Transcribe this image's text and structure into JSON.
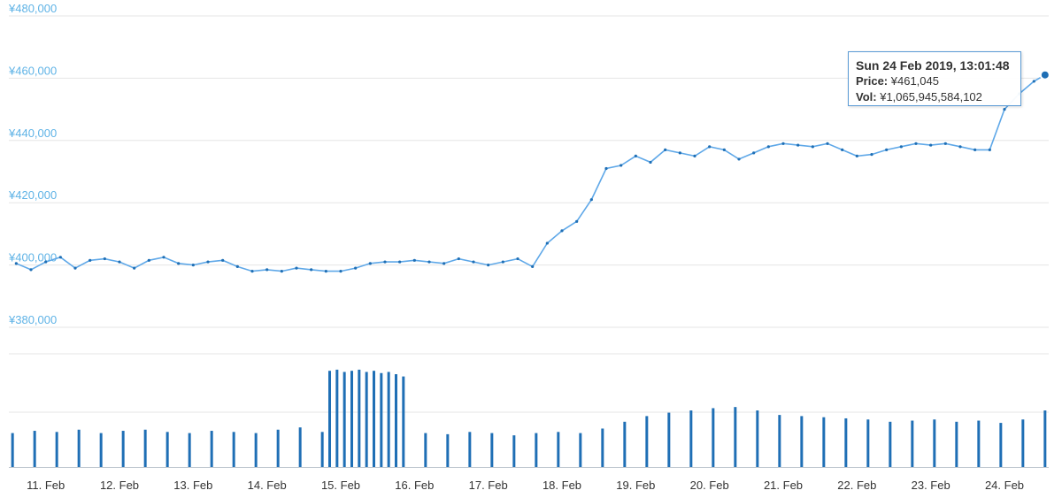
{
  "chart_data": [
    {
      "type": "line",
      "title": "",
      "xlabel": "",
      "ylabel": "",
      "ylim": [
        380000,
        480000
      ],
      "yticks": [
        "¥380,000",
        "¥400,000",
        "¥420,000",
        "¥440,000",
        "¥460,000",
        "¥480,000"
      ],
      "ytick_values": [
        380000,
        400000,
        420000,
        440000,
        460000,
        480000
      ],
      "xticks": [
        "11. Feb",
        "12. Feb",
        "13. Feb",
        "14. Feb",
        "15. Feb",
        "16. Feb",
        "17. Feb",
        "18. Feb",
        "19. Feb",
        "20. Feb",
        "21. Feb",
        "22. Feb",
        "23. Feb",
        "24. Feb"
      ],
      "color": "#5fa8e8",
      "grid": true,
      "series": [
        {
          "x": [
            10.6,
            10.8,
            11.0,
            11.2,
            11.4,
            11.6,
            11.8,
            12.0,
            12.2,
            12.4,
            12.6,
            12.8,
            13.0,
            13.2,
            13.4,
            13.6,
            13.8,
            14.0,
            14.2,
            14.4,
            14.6,
            14.8,
            15.0,
            15.2,
            15.4,
            15.6,
            15.8,
            16.0,
            16.2,
            16.4,
            16.6,
            16.8,
            17.0,
            17.2,
            17.4,
            17.6,
            17.8,
            18.0,
            18.2,
            18.4,
            18.6,
            18.8,
            19.0,
            19.2,
            19.4,
            19.6,
            19.8,
            20.0,
            20.2,
            20.4,
            20.6,
            20.8,
            21.0,
            21.2,
            21.4,
            21.6,
            21.8,
            22.0,
            22.2,
            22.4,
            22.6,
            22.8,
            23.0,
            23.2,
            23.4,
            23.6,
            23.8,
            24.0,
            24.2,
            24.4,
            24.55
          ],
          "values": [
            400500,
            398500,
            401000,
            402500,
            399000,
            401500,
            402000,
            401000,
            399000,
            401500,
            402500,
            400500,
            400000,
            401000,
            401500,
            399500,
            398000,
            398500,
            398000,
            399000,
            398500,
            398000,
            398000,
            399000,
            400500,
            401000,
            401000,
            401500,
            401000,
            400500,
            402000,
            401000,
            400000,
            401000,
            402000,
            399500,
            407000,
            411000,
            414000,
            421000,
            431000,
            432000,
            435000,
            433000,
            437000,
            436000,
            435000,
            438000,
            437000,
            434000,
            436000,
            438000,
            439000,
            438500,
            438000,
            439000,
            437000,
            435000,
            435500,
            437000,
            438000,
            439000,
            438500,
            439000,
            438000,
            437000,
            437000,
            450000,
            455000,
            459000,
            461045
          ]
        }
      ]
    },
    {
      "type": "bar",
      "title": "",
      "xlabel": "",
      "ylabel": "",
      "ylim": [
        0,
        100
      ],
      "color": "#1f6fb5",
      "grid": true,
      "x": [
        10.55,
        10.85,
        11.15,
        11.45,
        11.75,
        12.05,
        12.35,
        12.65,
        12.95,
        13.25,
        13.55,
        13.85,
        14.15,
        14.45,
        14.75,
        14.85,
        14.95,
        15.05,
        15.15,
        15.25,
        15.35,
        15.45,
        15.55,
        15.65,
        15.75,
        15.85,
        16.15,
        16.45,
        16.75,
        17.05,
        17.35,
        17.65,
        17.95,
        18.25,
        18.55,
        18.85,
        19.15,
        19.45,
        19.75,
        20.05,
        20.35,
        20.65,
        20.95,
        21.25,
        21.55,
        21.85,
        22.15,
        22.45,
        22.75,
        23.05,
        23.35,
        23.65,
        23.95,
        24.25,
        24.55
      ],
      "values": [
        30,
        32,
        31,
        33,
        30,
        32,
        33,
        31,
        30,
        32,
        31,
        30,
        33,
        35,
        31,
        85,
        86,
        84,
        85,
        86,
        84,
        85,
        83,
        84,
        82,
        80,
        30,
        29,
        31,
        30,
        28,
        30,
        31,
        30,
        34,
        40,
        45,
        48,
        50,
        52,
        53,
        50,
        46,
        45,
        44,
        43,
        42,
        40,
        41,
        42,
        40,
        41,
        39,
        42,
        50
      ]
    }
  ],
  "tooltip": {
    "title": "Sun 24 Feb 2019, 13:01:48",
    "price_label": "Price:",
    "price_value": "¥461,045",
    "vol_label": "Vol:",
    "vol_value": "¥1,065,945,584,102"
  }
}
